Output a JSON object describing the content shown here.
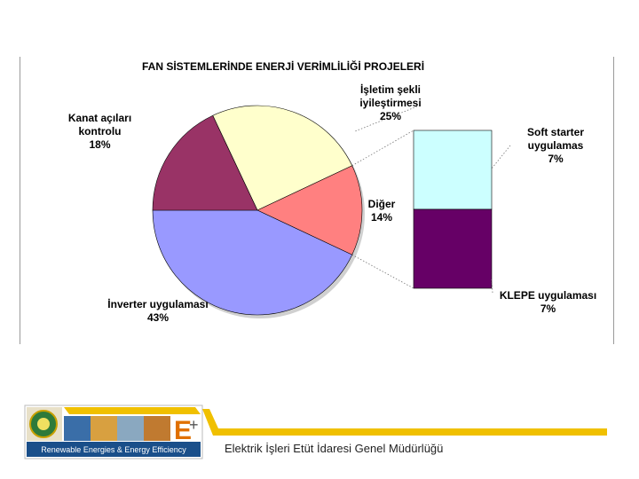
{
  "chart_data": {
    "type": "pie",
    "title": "FAN SİSTEMLERİNDE ENERJİ VERİMLİLİĞİ PROJELERİ",
    "slices": [
      {
        "label": "İşletim şekli\niyileştirmesi",
        "value": 25,
        "display": "25%",
        "color": "#ffffcc"
      },
      {
        "label": "Diğer",
        "value": 14,
        "display": "14%",
        "color": "#ff8080"
      },
      {
        "label": "İnverter uygulaması",
        "value": 43,
        "display": "43%",
        "color": "#9999ff"
      },
      {
        "label": "Kanat açıları\nkontrolu",
        "value": 18,
        "display": "18%",
        "color": "#993366"
      }
    ],
    "breakdown_of": "Diğer",
    "breakdown": [
      {
        "label": "Soft starter\nuygulamas",
        "value": 7,
        "display": "7%",
        "color": "#ccffff"
      },
      {
        "label": "KLEPE uygulaması",
        "value": 7,
        "display": "7%",
        "color": "#660066"
      }
    ]
  },
  "footer": {
    "logo_banner_text": "Renewable Energies & Energy Efficiency",
    "org_name": "Elektrik İşleri Etüt İdaresi Genel Müdürlüğü",
    "accent_color": "#f0c000"
  }
}
